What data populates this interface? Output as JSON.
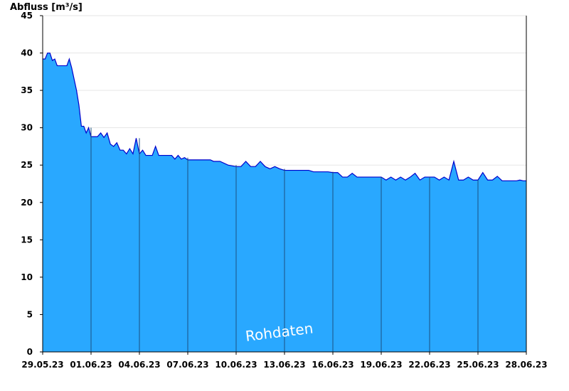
{
  "chart_data": {
    "type": "area",
    "ylabel": "Abfluss [m³/s]",
    "watermark": "Rohdaten",
    "ylim": [
      0,
      45
    ],
    "yticks": [
      0,
      5,
      10,
      15,
      20,
      25,
      30,
      35,
      40,
      45
    ],
    "xlim": [
      "2023-05-29",
      "2023-06-28"
    ],
    "xticks": [
      "29.05.23",
      "01.06.23",
      "04.06.23",
      "07.06.23",
      "10.06.23",
      "13.06.23",
      "16.06.23",
      "19.06.23",
      "22.06.23",
      "25.06.23",
      "28.06.23"
    ],
    "grid": true,
    "colors": {
      "fill": "#29A8FF",
      "line": "#0000CC",
      "grid": "#E6E6E6",
      "divider": "#1A4F80"
    },
    "series": [
      {
        "x": [
          0,
          0.15,
          0.3,
          0.45,
          0.6,
          0.75,
          0.9,
          1.05,
          1.2,
          1.35,
          1.5,
          1.65,
          1.8,
          1.95,
          2.1,
          2.25,
          2.4,
          2.55,
          2.7,
          2.85,
          3.0,
          3.2,
          3.4,
          3.6,
          3.8,
          4.0,
          4.2,
          4.4,
          4.6,
          4.8,
          5.0,
          5.2,
          5.4,
          5.6,
          5.8,
          6.0,
          6.2,
          6.4,
          6.6,
          6.8,
          7.0,
          7.2,
          7.4,
          7.6,
          7.8,
          8.0,
          8.2,
          8.4,
          8.6,
          8.8,
          9.0,
          9.2,
          9.4,
          9.6,
          9.8,
          10.0,
          10.2,
          10.4,
          10.6,
          10.8,
          11.0,
          11.5,
          12.0,
          12.3,
          12.6,
          12.9,
          13.2,
          13.5,
          13.8,
          14.1,
          14.4,
          14.7,
          15.0,
          15.3,
          15.6,
          15.9,
          16.2,
          16.5,
          16.8,
          17.1,
          17.4,
          17.7,
          18.0,
          18.3,
          18.6,
          18.9,
          19.2,
          19.5,
          19.8,
          20.1,
          20.4,
          20.7,
          21.0,
          21.3,
          21.6,
          21.9,
          22.2,
          22.5,
          22.8,
          23.1,
          23.4,
          23.7,
          24.0,
          24.3,
          24.6,
          24.9,
          25.2,
          25.5,
          25.8,
          26.1,
          26.4,
          26.7,
          27.0,
          27.3,
          27.6,
          27.9,
          28.2,
          28.5,
          28.8,
          29.1,
          29.4,
          29.6,
          29.8,
          30.0
        ],
        "y": [
          39.2,
          39.2,
          40.0,
          40.0,
          39.0,
          39.2,
          38.3,
          38.3,
          38.3,
          38.3,
          38.3,
          39.2,
          38.0,
          36.5,
          35.0,
          33.0,
          30.2,
          30.2,
          29.3,
          30.0,
          28.8,
          28.8,
          28.8,
          29.3,
          28.7,
          29.3,
          27.8,
          27.5,
          28.0,
          27.0,
          27.0,
          26.5,
          27.2,
          26.5,
          28.6,
          26.5,
          27.0,
          26.3,
          26.3,
          26.3,
          27.5,
          26.3,
          26.3,
          26.3,
          26.3,
          26.3,
          25.8,
          26.3,
          25.8,
          26.0,
          25.7,
          25.7,
          25.7,
          25.7,
          25.7,
          25.7,
          25.7,
          25.7,
          25.5,
          25.5,
          25.5,
          25.0,
          24.8,
          24.8,
          25.5,
          24.8,
          24.8,
          25.5,
          24.8,
          24.5,
          24.8,
          24.5,
          24.3,
          24.3,
          24.3,
          24.3,
          24.3,
          24.3,
          24.1,
          24.1,
          24.1,
          24.1,
          24.0,
          24.0,
          23.4,
          23.4,
          23.9,
          23.4,
          23.4,
          23.4,
          23.4,
          23.4,
          23.4,
          23.0,
          23.4,
          23.0,
          23.4,
          23.0,
          23.4,
          23.9,
          23.0,
          23.4,
          23.4,
          23.4,
          23.0,
          23.4,
          23.0,
          25.5,
          23.0,
          23.0,
          23.4,
          23.0,
          23.0,
          24.0,
          23.0,
          23.0,
          23.5,
          22.9,
          22.9,
          22.9,
          22.9,
          23.0,
          22.9,
          22.9
        ]
      }
    ]
  }
}
